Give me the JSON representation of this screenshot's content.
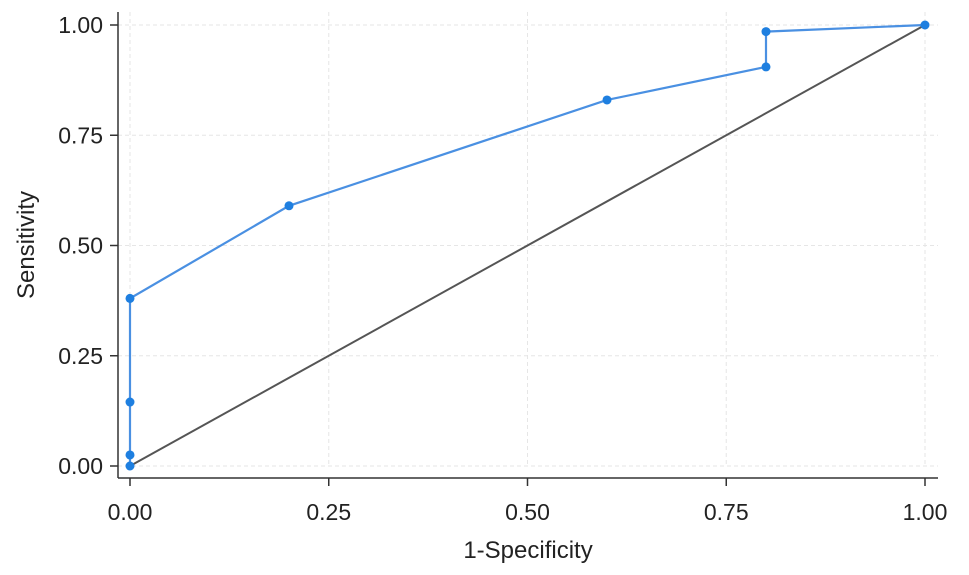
{
  "chart_data": {
    "type": "line",
    "title": "",
    "xlabel": "1-Specificity",
    "ylabel": "Sensitivity",
    "xlim": [
      0,
      1
    ],
    "ylim": [
      0,
      1
    ],
    "x_ticks": [
      "0.00",
      "0.25",
      "0.50",
      "0.75",
      "1.00"
    ],
    "y_ticks": [
      "0.00",
      "0.25",
      "0.50",
      "0.75",
      "1.00"
    ],
    "grid": true,
    "legend": "none",
    "series": [
      {
        "color": "#4a90e2",
        "marker_color": "#1e7fe0",
        "points": [
          {
            "x": 0.0,
            "y": 0.0
          },
          {
            "x": 0.0,
            "y": 0.025
          },
          {
            "x": 0.0,
            "y": 0.145
          },
          {
            "x": 0.0,
            "y": 0.38
          },
          {
            "x": 0.2,
            "y": 0.59
          },
          {
            "x": 0.6,
            "y": 0.83
          },
          {
            "x": 0.8,
            "y": 0.905
          },
          {
            "x": 0.8,
            "y": 0.985
          },
          {
            "x": 1.0,
            "y": 1.0
          }
        ]
      },
      {
        "color": "#555555",
        "reference": true,
        "points": [
          {
            "x": 0.0,
            "y": 0.0
          },
          {
            "x": 1.0,
            "y": 1.0
          }
        ]
      }
    ]
  }
}
